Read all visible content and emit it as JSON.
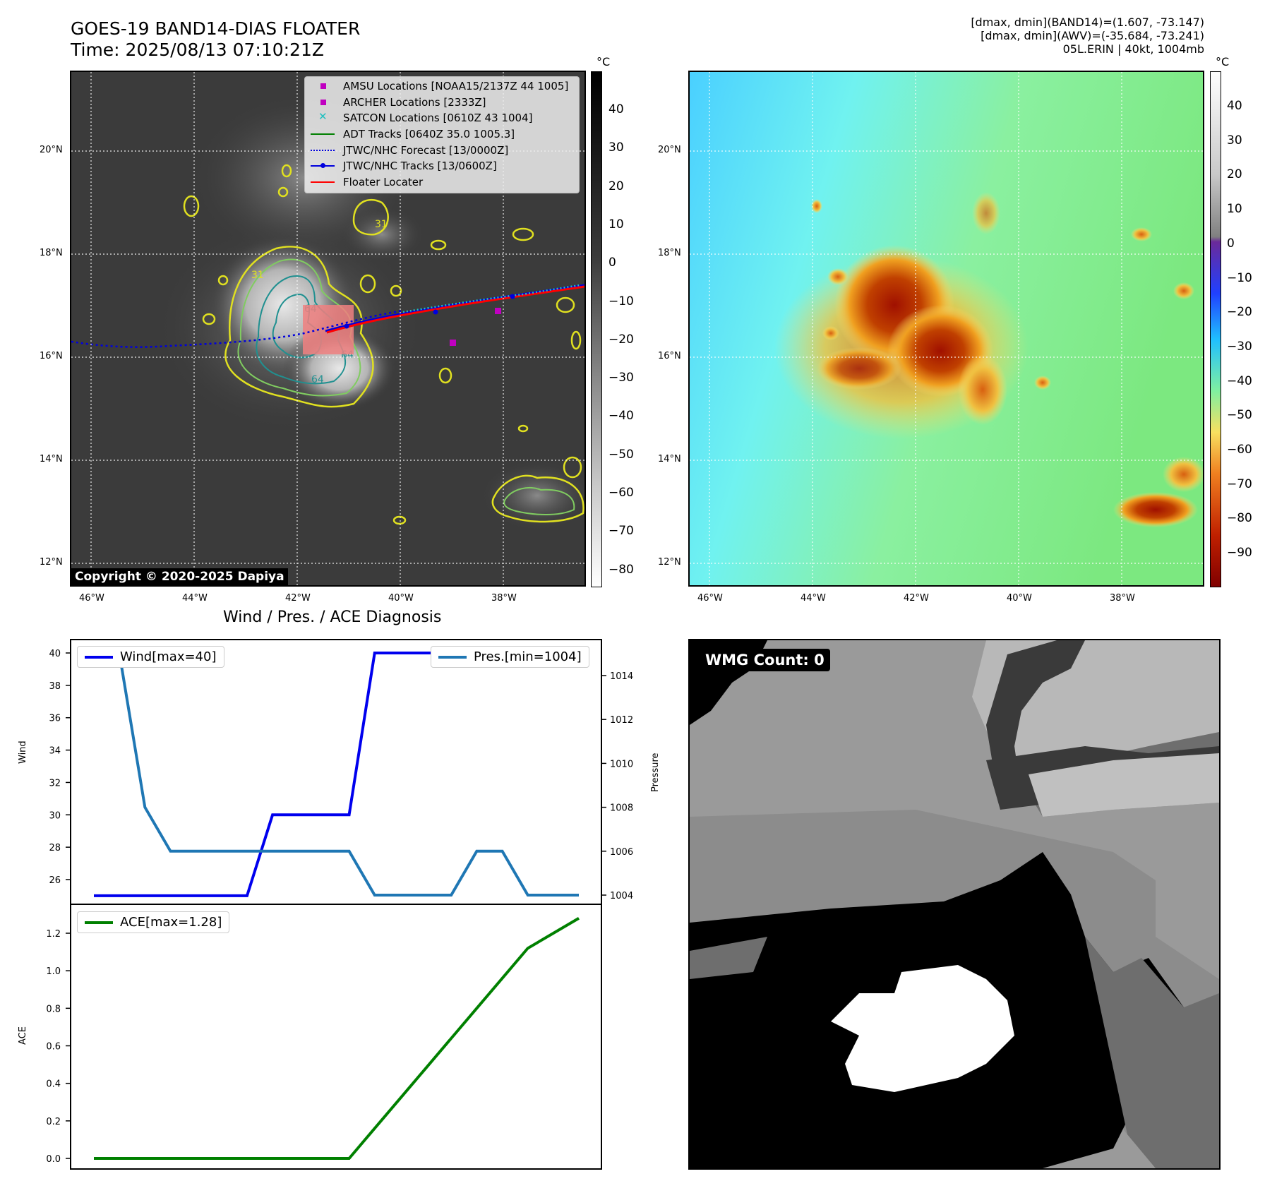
{
  "header": {
    "title_line1": "GOES-19 BAND14-DIAS FLOATER",
    "title_line2": "Time: 2025/08/13 07:10:21Z",
    "info_line1": "[dmax, dmin](BAND14)=(1.607, -73.147)",
    "info_line2": "[dmax, dmin](AWV)=(-35.684, -73.241)",
    "info_line3": "05L.ERIN | 40kt, 1004mb"
  },
  "map_axes": {
    "lat_labels": [
      "20°N",
      "18°N",
      "16°N",
      "14°N",
      "12°N"
    ],
    "lon_labels": [
      "46°W",
      "44°W",
      "42°W",
      "40°W",
      "38°W"
    ]
  },
  "ir_panel": {
    "colorbar_unit": "°C",
    "colorbar_ticks": [
      "40",
      "30",
      "20",
      "10",
      "0",
      "−10",
      "−20",
      "−30",
      "−40",
      "−50",
      "−60",
      "−70",
      "−80"
    ],
    "copyright": "Copyright © 2020-2025 Dapiya",
    "contour_labels": [
      "31",
      "64",
      "64",
      "64",
      "31"
    ],
    "legend": [
      {
        "label": "AMSU Locations [NOAA15/2137Z 44 1005]",
        "symbol": "square",
        "color": "#c000c0"
      },
      {
        "label": "ARCHER Locations [2333Z]",
        "symbol": "square",
        "color": "#c000c0"
      },
      {
        "label": "SATCON Locations [0610Z 43 1004]",
        "symbol": "x",
        "color": "#20c0c0"
      },
      {
        "label": "ADT Tracks [0640Z 35.0 1005.3]",
        "symbol": "line",
        "color": "#008000"
      },
      {
        "label": "JTWC/NHC Forecast [13/0000Z]",
        "symbol": "dotted",
        "color": "#0000dd"
      },
      {
        "label": "JTWC/NHC Tracks [13/0600Z]",
        "symbol": "line-dot",
        "color": "#0000dd"
      },
      {
        "label": "Floater Locater",
        "symbol": "line",
        "color": "#ff0000"
      }
    ]
  },
  "wv_panel": {
    "colorbar_unit": "°C",
    "colorbar_ticks": [
      "40",
      "30",
      "20",
      "10",
      "0",
      "−10",
      "−20",
      "−30",
      "−40",
      "−50",
      "−60",
      "−70",
      "−80",
      "−90"
    ]
  },
  "diagnosis": {
    "title": "Wind / Pres. / ACE Diagnosis",
    "wind_ylabel": "Wind",
    "pressure_ylabel": "Pressure",
    "ace_ylabel": "ACE",
    "wind_legend": "Wind[max=40]",
    "pres_legend": "Pres.[min=1004]",
    "ace_legend": "ACE[max=1.28]",
    "wind_ticks": [
      "40",
      "38",
      "36",
      "34",
      "32",
      "30",
      "28",
      "26"
    ],
    "pres_ticks": [
      "1014",
      "1012",
      "1010",
      "1008",
      "1006",
      "1004"
    ],
    "ace_ticks": [
      "1.2",
      "1.0",
      "0.8",
      "0.6",
      "0.4",
      "0.2",
      "0.0"
    ],
    "colors": {
      "wind": "#0000ee",
      "pressure": "#1f77b4",
      "ace": "#008000"
    }
  },
  "chart_data": [
    {
      "type": "line",
      "name": "Wind",
      "x": [
        0,
        1,
        2,
        3,
        4,
        5,
        6,
        7,
        8,
        9,
        10,
        11,
        12,
        13,
        14,
        15,
        16,
        17,
        18,
        19
      ],
      "series": [
        {
          "name": "Wind[max=40]",
          "values": [
            25,
            25,
            25,
            25,
            25,
            25,
            25,
            30,
            30,
            30,
            30,
            40,
            40,
            40,
            40,
            40,
            40,
            40,
            40,
            40
          ]
        }
      ],
      "ylim": [
        25,
        40
      ]
    },
    {
      "type": "line",
      "name": "Pressure",
      "x": [
        0,
        1,
        2,
        3,
        4,
        5,
        6,
        7,
        8,
        9,
        10,
        11,
        12,
        13,
        14,
        15,
        16,
        17,
        18,
        19
      ],
      "series": [
        {
          "name": "Pres.[min=1004]",
          "values": [
            1015,
            1015,
            1008,
            1006,
            1006,
            1006,
            1006,
            1006,
            1006,
            1006,
            1006,
            1004,
            1004,
            1004,
            1004,
            1006,
            1006,
            1004,
            1004,
            1004
          ]
        }
      ],
      "ylim": [
        1004,
        1015
      ]
    },
    {
      "type": "line",
      "name": "ACE",
      "x": [
        0,
        1,
        2,
        3,
        4,
        5,
        6,
        7,
        8,
        9,
        10,
        11,
        12,
        13,
        14,
        15,
        16,
        17,
        18,
        19
      ],
      "series": [
        {
          "name": "ACE[max=1.28]",
          "values": [
            0,
            0,
            0,
            0,
            0,
            0,
            0,
            0,
            0,
            0,
            0,
            0.16,
            0.32,
            0.48,
            0.64,
            0.8,
            0.96,
            1.12,
            1.2,
            1.28
          ]
        }
      ],
      "ylim": [
        0,
        1.28
      ]
    }
  ],
  "wmg_panel": {
    "label": "WMG Count: 0"
  }
}
